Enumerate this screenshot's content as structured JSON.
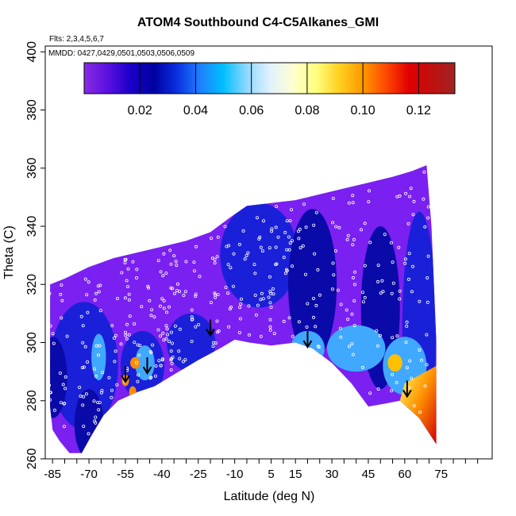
{
  "chart_data": {
    "type": "heatmap",
    "title": "ATOM4 Southbound C4-C5Alkanes_GMI",
    "subtitle_flights": "Flts: 2,3,4,5,6,7",
    "subtitle_dates": "MMDD: 0427,0429,0501,0503,0506,0509",
    "xlabel": "Latitude (deg N)",
    "ylabel": "Theta (C)",
    "xlim": [
      -88,
      96
    ],
    "ylim": [
      260,
      402
    ],
    "x_ticks": [
      -85,
      -70,
      -55,
      -40,
      -25,
      -10,
      5,
      15,
      30,
      45,
      60,
      75
    ],
    "y_ticks": [
      260,
      280,
      300,
      320,
      340,
      360,
      380,
      400
    ],
    "colorbar": {
      "range": [
        0.0,
        0.133
      ],
      "ticks": [
        0.02,
        0.04,
        0.06,
        0.08,
        0.1,
        0.12
      ],
      "tick_labels": [
        "0.02",
        "0.04",
        "0.06",
        "0.08",
        "0.10",
        "0.12"
      ],
      "colors": [
        "#8a2be2",
        "#5a10e0",
        "#1a00c8",
        "#0000a0",
        "#0a30e0",
        "#1f7fff",
        "#00bfff",
        "#8fd8ff",
        "#e0f0ff",
        "#ffffd0",
        "#ffff80",
        "#ffd020",
        "#ff9a00",
        "#ff4a00",
        "#e00000",
        "#c01010",
        "#a02424"
      ]
    },
    "fill_colors": {
      "background": "#7a20f0",
      "mid_blue": "#1a20d8",
      "deep_blue": "#0a0aa8",
      "light_blue": "#40a8ff",
      "hot": "#ff8c00"
    },
    "tropopause_arrows": [
      {
        "lat": -55,
        "theta": 287
      },
      {
        "lat": -46,
        "theta": 290
      },
      {
        "lat": -20,
        "theta": 303
      },
      {
        "lat": 20,
        "theta": 299
      },
      {
        "lat": 61,
        "theta": 282
      }
    ],
    "domain_top": [
      [
        -86,
        320
      ],
      [
        -80,
        322
      ],
      [
        -70,
        326
      ],
      [
        -60,
        329
      ],
      [
        -50,
        331
      ],
      [
        -40,
        333
      ],
      [
        -30,
        335
      ],
      [
        -20,
        338
      ],
      [
        -12,
        343
      ],
      [
        -5,
        347
      ],
      [
        5,
        348
      ],
      [
        15,
        349
      ],
      [
        25,
        351
      ],
      [
        35,
        353
      ],
      [
        45,
        355
      ],
      [
        55,
        357
      ],
      [
        63,
        359
      ],
      [
        69,
        361
      ]
    ],
    "domain_right": [
      [
        69,
        361
      ],
      [
        71,
        340
      ],
      [
        72,
        320
      ],
      [
        73,
        300
      ],
      [
        73,
        265
      ]
    ],
    "domain_bottom": [
      [
        73,
        265
      ],
      [
        66,
        274
      ],
      [
        58,
        280
      ],
      [
        52,
        279
      ],
      [
        45,
        278
      ],
      [
        38,
        286
      ],
      [
        30,
        293
      ],
      [
        22,
        298
      ],
      [
        15,
        300
      ],
      [
        5,
        299
      ],
      [
        -4,
        300
      ],
      [
        -10,
        301
      ],
      [
        -16,
        298
      ],
      [
        -25,
        294
      ],
      [
        -35,
        289
      ],
      [
        -43,
        285
      ],
      [
        -50,
        283
      ],
      [
        -58,
        280
      ],
      [
        -64,
        275
      ],
      [
        -69,
        268
      ],
      [
        -73,
        262
      ],
      [
        -78,
        262
      ],
      [
        -82,
        266
      ],
      [
        -85,
        270
      ],
      [
        -86,
        278
      ],
      [
        -86,
        320
      ]
    ]
  }
}
